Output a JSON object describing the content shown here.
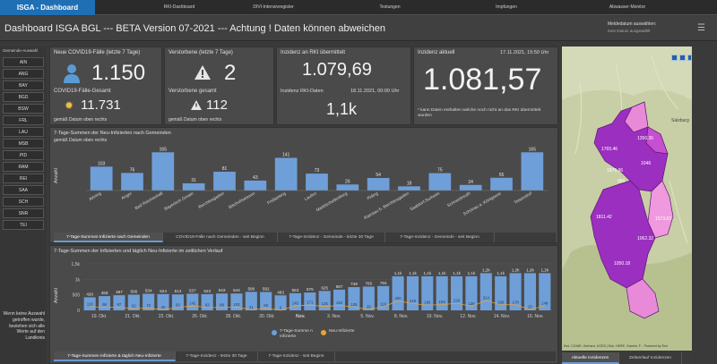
{
  "app": {
    "brand": "ISGA - Dashboard",
    "nav": [
      "RKI-Dashboard",
      "DIVI-Intensivregister",
      "Testungen",
      "Impfungen",
      "Abwasser-Monitor"
    ]
  },
  "header": {
    "title": "Dashboard ISGA BGL --- BETA Version 07-2021 --- Achtung ! Daten können abweichen",
    "meldedatum_label": "Meldedatum auswählen:",
    "meldedatum_value": "Kein Datum ausgewählt"
  },
  "sidebar": {
    "label": "Gemeinde-Auswahl",
    "items": [
      "AIN",
      "ANG",
      "BAY",
      "BGD",
      "BSW",
      "FRL",
      "LAU",
      "MSB",
      "PID",
      "RAM",
      "REI",
      "SAA",
      "SCH",
      "SNR",
      "TEI"
    ],
    "note": "Wenn keine Auswahl getroffen wurde, beziehen sich alle Werte auf den Landkreis"
  },
  "kpi_cases": {
    "title": "Neue COVID19-Fälle (letzte 7 Tage)",
    "value": "1.150",
    "total_label": "COVID19-Fälle-Gesamt",
    "total_value": "11.731",
    "footnote": "gemäß Datum oben rechts"
  },
  "kpi_deaths": {
    "title": "Verstorbene (letzte 7 Tage)",
    "value": "2",
    "total_label": "Verstorbene gesamt",
    "total_value": "112",
    "footnote": "gemäß Datum oben rechts"
  },
  "kpi_rki": {
    "title": "Inzidenz an RKI übermittelt",
    "value": "1.079,69",
    "date_label": "Inzidenz RKI-Daten",
    "date_value": "18.11.2021, 00:00 Uhr",
    "value2": "1,1k"
  },
  "kpi_current": {
    "title": "Inzidenz aktuell",
    "date": "17.11.2021, 15:50 Uhr",
    "value": "1.081,57",
    "footnote": "* kann Daten enthalten welche noch nicht an das RKI übermittelt wurden"
  },
  "gemeinde_chart": {
    "title": "7-Tage-Summen der Neu-Infizierten nach Gemeinden",
    "subtitle": "gemäß Datum oben rechts",
    "ylabel": "Anzahl",
    "chart_data": {
      "type": "bar",
      "categories": [
        "Ainring",
        "Anger",
        "Bad Reichenhall",
        "Bayerisch Gmain",
        "Berchtesgaden",
        "Bischofswiesen",
        "Freilassing",
        "Laufen",
        "Marktschellenberg",
        "Piding",
        "Ramsau b. Berchtesgaden",
        "Saaldorf-Surheim",
        "Schneizlreuth",
        "Schönau a. Königssee",
        "Teisendorf"
      ],
      "values": [
        103,
        76,
        165,
        31,
        81,
        43,
        141,
        73,
        26,
        54,
        18,
        75,
        24,
        55,
        165
      ],
      "ylabel": "Anzahl"
    },
    "tabs": [
      "7-Tage-Summen Infizierte nach Gemeinden",
      "COVID19-Fälle nach Gemeinden - seit Beginn",
      "7-Tage-Inzidenz - Gemeinde - letzte 30 Tage",
      "7-Tage-Inzidenz - Gemeinde - seit Beginn"
    ]
  },
  "time_chart": {
    "title": "7-Tage-Summen der Infizierten und täglich Neu-Infizierte im zeitlichen Verlauf",
    "ylabel": "Anzahl",
    "legend": [
      "7-Tage-Summe n Infizierte",
      "Neu-Infizierte"
    ],
    "chart_data": {
      "type": "bar",
      "yticks": [
        "1,5k",
        "1k",
        "500",
        "0"
      ],
      "ylim": [
        0,
        1500
      ],
      "sum7": [
        420,
        459,
        487,
        506,
        534,
        524,
        513,
        537,
        523,
        543,
        544,
        596,
        592,
        483,
        553,
        575,
        625,
        667,
        749,
        765,
        784,
        1100,
        1100,
        1100,
        1100,
        1100,
        1100,
        1200,
        1100,
        1200,
        1200,
        1200
      ],
      "sum7_labels": [
        "420",
        "459",
        "487",
        "506",
        "534",
        "524",
        "513",
        "537",
        "523",
        "543",
        "544",
        "596",
        "592",
        "483",
        "553",
        "575",
        "625",
        "667",
        "749",
        "765",
        "784",
        "1,1k",
        "1,1k",
        "1,1k",
        "1,1k",
        "1,1k",
        "1,1k",
        "1,2k",
        "1,1k",
        "1,2k",
        "1,2k",
        "1,2k"
      ],
      "daily": [
        118,
        98,
        97,
        62,
        72,
        20,
        93,
        142,
        93,
        88,
        103,
        21,
        65,
        6,
        143,
        171,
        125,
        162,
        105,
        29,
        116,
        300,
        219,
        166,
        183,
        226,
        130,
        314,
        180,
        178,
        25,
        148
      ],
      "xlabels": [
        "19. Okt.",
        "21. Okt.",
        "22. Okt.",
        "26. Okt.",
        "28. Okt.",
        "30. Okt.",
        "Nov.",
        "3. Nov.",
        "5. Nov.",
        "8. Nov.",
        "10. Nov.",
        "12. Nov.",
        "14. Nov.",
        "16. Nov."
      ]
    },
    "tabs": [
      "7-Tage-Summen Infizierte & täglich Neu-Infizierte",
      "7-Tage-Inzidenz - letzte 30 Tage",
      "7-Tage-Inzidenz - seit Beginn"
    ]
  },
  "map": {
    "labels": [
      "1350.36",
      "1765.46",
      "1876.96",
      "1046",
      "969",
      "1811.42",
      "1050.18",
      "1062.32",
      "1573.62"
    ],
    "place": "Salzburg",
    "attribution": "Esri, CGIAR, Gerhard, USGS | Esri, HERE, Garmin, F...   Powered by Esri",
    "tabs": [
      "Aktuelle Inzidenzen",
      "Zeitverlauf Inzidenzen"
    ]
  }
}
